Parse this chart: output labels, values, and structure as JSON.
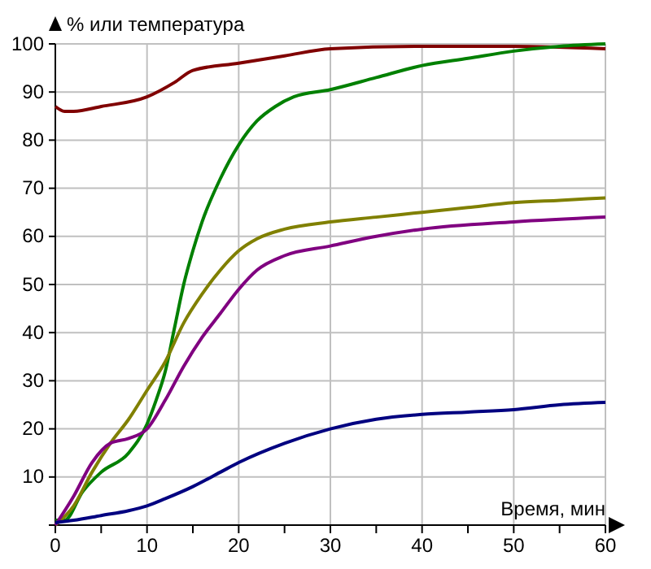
{
  "chart_data": {
    "type": "line",
    "xlabel": "Время, мин",
    "ylabel": "% или температура",
    "xlim": [
      0,
      60
    ],
    "ylim": [
      0,
      100
    ],
    "xticks": [
      0,
      {
        "value": 5,
        "label": null
      },
      10,
      {
        "value": 15,
        "label": null
      },
      20,
      {
        "value": 25,
        "label": null
      },
      30,
      {
        "value": 35,
        "label": null
      },
      40,
      {
        "value": 45,
        "label": null
      },
      50,
      {
        "value": 55,
        "label": null
      },
      60
    ],
    "yticks": [
      {
        "value": 0,
        "label": null
      },
      10,
      20,
      30,
      40,
      50,
      60,
      70,
      80,
      90,
      100
    ],
    "grid": true,
    "series": [
      {
        "color": "#800000",
        "x": [
          0,
          1,
          2,
          5,
          10,
          13,
          15,
          20,
          25,
          30,
          40,
          50,
          60
        ],
        "values": [
          87,
          86,
          86,
          87,
          89,
          92,
          94.5,
          96,
          97.5,
          99,
          99.5,
          99.5,
          99
        ]
      },
      {
        "color": "#008000",
        "x": [
          0,
          1,
          3,
          5,
          8,
          10,
          11,
          12,
          13,
          14,
          15,
          16,
          18,
          20,
          22,
          24,
          26,
          30,
          35,
          40,
          45,
          50,
          55,
          60
        ],
        "values": [
          1,
          1,
          7,
          11,
          15,
          21,
          26,
          32,
          41,
          50,
          57,
          63,
          72,
          79,
          84,
          87,
          89,
          90.5,
          93,
          95.5,
          97,
          98.5,
          99.5,
          100
        ]
      },
      {
        "color": "#808000",
        "x": [
          0,
          2,
          4,
          6,
          8,
          10,
          12,
          14,
          16,
          18,
          20,
          22,
          25,
          30,
          35,
          40,
          45,
          50,
          55,
          60
        ],
        "values": [
          0,
          4,
          11,
          17,
          22,
          28,
          34,
          42,
          48,
          53,
          57,
          59.5,
          61.5,
          63,
          64,
          65,
          66,
          67,
          67.5,
          68
        ]
      },
      {
        "color": "#800080",
        "x": [
          0,
          2,
          4,
          6,
          8,
          10,
          12,
          14,
          16,
          18,
          20,
          22,
          25,
          30,
          35,
          40,
          50,
          60
        ],
        "values": [
          0,
          6,
          13,
          17,
          18,
          20,
          26,
          33,
          39,
          44,
          49,
          53,
          56,
          58,
          60,
          61.5,
          63,
          64
        ]
      },
      {
        "color": "#000080",
        "x": [
          0,
          2,
          5,
          8,
          10,
          12,
          15,
          18,
          20,
          25,
          30,
          35,
          40,
          45,
          50,
          55,
          60
        ],
        "values": [
          0.5,
          1,
          2,
          3,
          4,
          5.5,
          8,
          11,
          13,
          17,
          20,
          22,
          23,
          23.5,
          24,
          25,
          25.5
        ]
      }
    ]
  }
}
